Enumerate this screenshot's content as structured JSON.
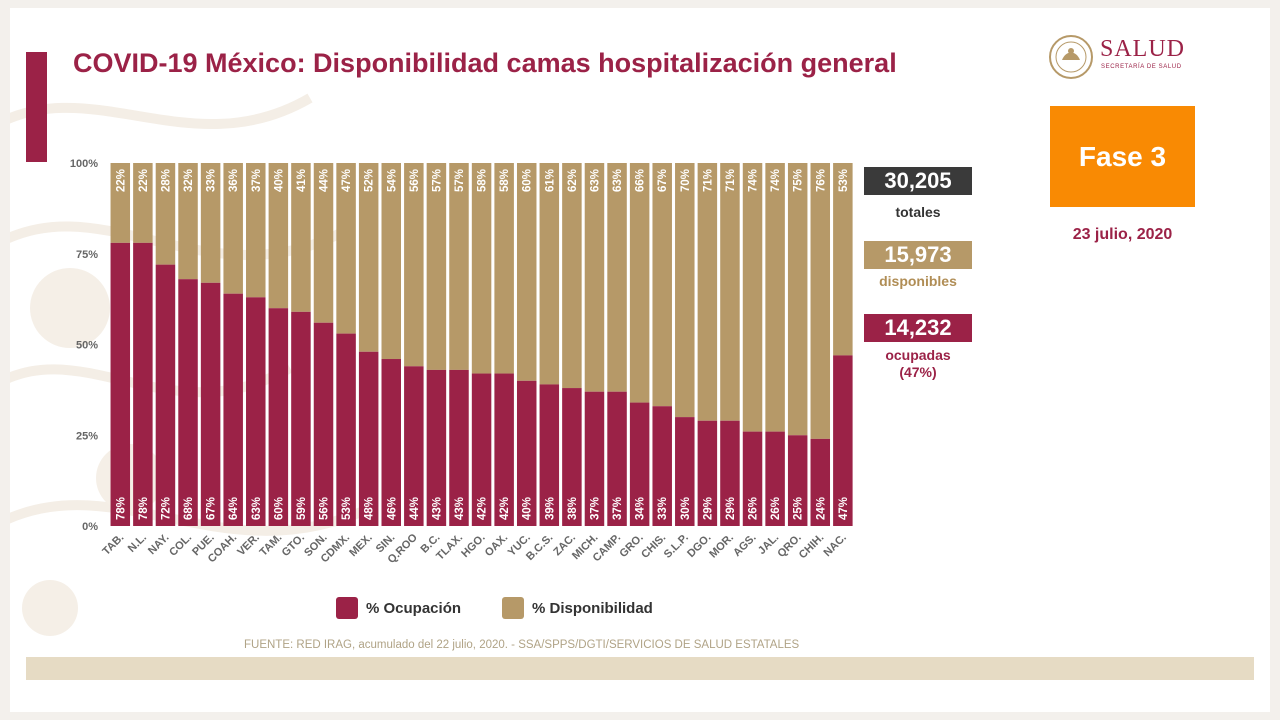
{
  "title": "COVID-19 México: Disponibilidad camas hospitalización general",
  "logo": {
    "name": "SALUD",
    "subtitle": "SECRETARÍA DE SALUD"
  },
  "phase_label": "Fase 3",
  "date": "23 julio, 2020",
  "stats": {
    "total": {
      "value": "30,205",
      "label": "totales"
    },
    "available": {
      "value": "15,973",
      "label": "disponibles"
    },
    "occupied": {
      "value": "14,232",
      "label": "ocupadas",
      "percent_label": "(47%)"
    }
  },
  "colors": {
    "brand": "#9b2247",
    "occupancy": "#9b2247",
    "availability": "#b69968",
    "phase": "#f98a03",
    "total_box": "#3a3a3a",
    "available_box": "#b69968"
  },
  "source": "FUENTE: RED IRAG, acumulado del 22 julio, 2020. -  SSA/SPPS/DGTI/SERVICIOS DE SALUD ESTATALES",
  "chart_data": {
    "type": "bar",
    "stacked": true,
    "categories": [
      "TAB.",
      "N.L.",
      "NAY.",
      "COL.",
      "PUE.",
      "COAH.",
      "VER.",
      "TAM.",
      "GTO.",
      "SON.",
      "CDMX.",
      "MEX.",
      "SIN.",
      "Q.ROO",
      "B.C.",
      "TLAX.",
      "HGO.",
      "OAX.",
      "YUC.",
      "B.C.S.",
      "ZAC.",
      "MICH.",
      "CAMP.",
      "GRO.",
      "CHIS.",
      "S.L.P.",
      "DGO.",
      "MOR.",
      "AGS.",
      "JAL.",
      "QRO.",
      "CHIH.",
      "NAC."
    ],
    "series": [
      {
        "name": "% Ocupación",
        "values": [
          78,
          78,
          72,
          68,
          67,
          64,
          63,
          60,
          59,
          56,
          53,
          48,
          46,
          44,
          43,
          43,
          42,
          42,
          40,
          39,
          38,
          37,
          37,
          34,
          33,
          30,
          29,
          29,
          26,
          26,
          25,
          24,
          47
        ]
      },
      {
        "name": "% Disponibilidad",
        "values": [
          22,
          22,
          28,
          32,
          33,
          36,
          37,
          40,
          41,
          44,
          47,
          52,
          54,
          56,
          57,
          57,
          58,
          58,
          60,
          61,
          62,
          63,
          63,
          66,
          67,
          70,
          71,
          71,
          74,
          74,
          75,
          76,
          53
        ]
      }
    ],
    "y_ticks": [
      "0%",
      "25%",
      "50%",
      "75%",
      "100%"
    ],
    "ylim": [
      0,
      100
    ],
    "legend_position": "bottom"
  }
}
